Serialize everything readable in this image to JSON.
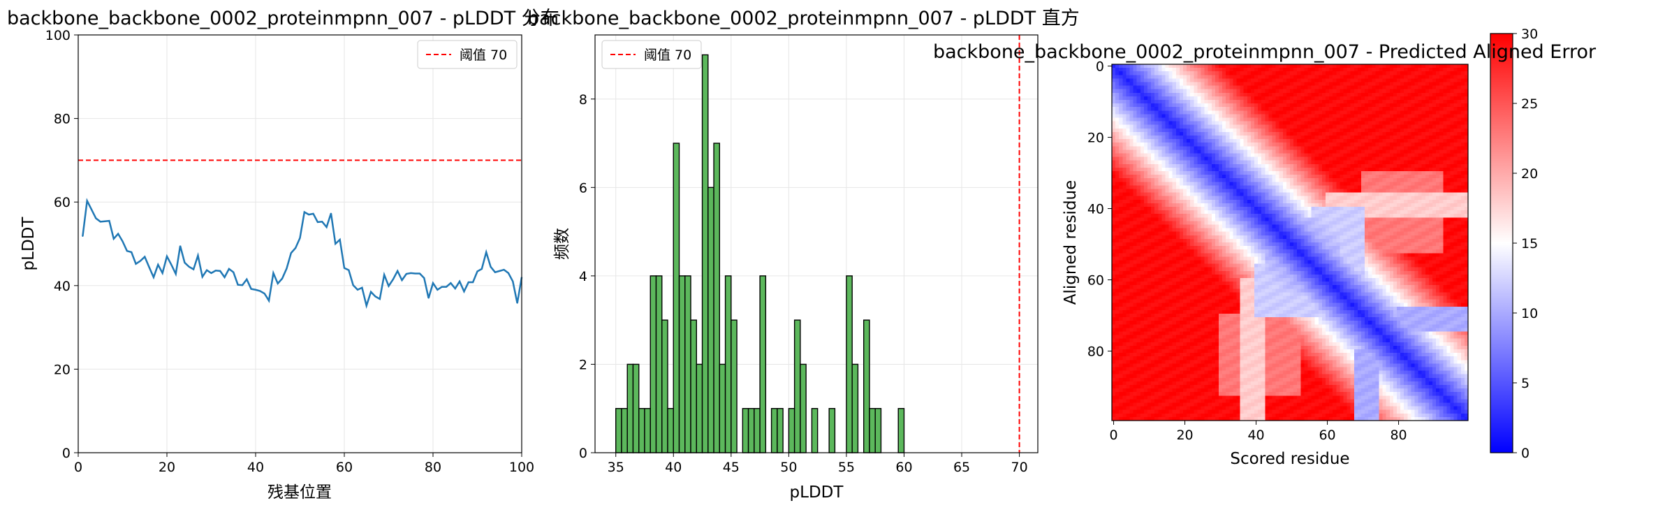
{
  "chart_data": [
    {
      "type": "line",
      "title": "backbone_backbone_0002_proteinmpnn_007 - pLDDT 分布",
      "xlabel": "残基位置",
      "ylabel": "pLDDT",
      "xlim": [
        0,
        100
      ],
      "ylim": [
        0,
        100
      ],
      "xticks": [
        0,
        20,
        40,
        60,
        80,
        100
      ],
      "yticks": [
        0,
        20,
        40,
        60,
        80,
        100
      ],
      "grid": true,
      "legend_position": "top-right",
      "colors": {
        "line": "#1f77b4",
        "threshold": "#ff0000"
      },
      "threshold": {
        "value": 70,
        "label": "阈值 70"
      },
      "series": [
        {
          "x": [
            1,
            2,
            3,
            4,
            5,
            6,
            7,
            8,
            9,
            10,
            11,
            12,
            13,
            14,
            15,
            16,
            17,
            18,
            19,
            20,
            21,
            22,
            23,
            24,
            25,
            26,
            27,
            28,
            29,
            30,
            31,
            32,
            33,
            34,
            35,
            36,
            37,
            38,
            39,
            40,
            41,
            42,
            43,
            44,
            45,
            46,
            47,
            48,
            49,
            50,
            51,
            52,
            53,
            54,
            55,
            56,
            57,
            58,
            59,
            60,
            61,
            62,
            63,
            64,
            65,
            66,
            67,
            68,
            69,
            70,
            71,
            72,
            73,
            74,
            75,
            76,
            77,
            78,
            79,
            80,
            81,
            82,
            83,
            84,
            85,
            86,
            87,
            88,
            89,
            90,
            91,
            92,
            93,
            94,
            95,
            96,
            97,
            98,
            99,
            100
          ],
          "values": [
            51.8,
            60.3,
            58.2,
            56.1,
            55.3,
            55.4,
            55.5,
            51.2,
            52.4,
            50.6,
            48.3,
            48.0,
            45.2,
            45.9,
            46.9,
            44.4,
            42.0,
            45.0,
            43.0,
            47.0,
            45.0,
            42.8,
            49.5,
            45.5,
            44.5,
            43.9,
            47.2,
            42.1,
            43.7,
            43.0,
            43.6,
            43.5,
            42.0,
            44.0,
            43.2,
            40.2,
            40.1,
            41.5,
            39.2,
            39.0,
            38.7,
            38.1,
            36.4,
            43.0,
            40.5,
            41.7,
            44.1,
            47.8,
            49.0,
            51.4,
            57.6,
            57.0,
            57.2,
            55.2,
            55.3,
            54.0,
            57.3,
            50.0,
            51.0,
            44.2,
            43.7,
            40.1,
            39.0,
            39.5,
            35.2,
            38.5,
            37.4,
            36.8,
            42.6,
            39.9,
            41.5,
            43.5,
            41.3,
            42.8,
            43.0,
            42.9,
            42.9,
            41.8,
            37.0,
            40.6,
            39.0,
            39.7,
            39.7,
            40.6,
            39.3,
            41.0,
            38.6,
            40.8,
            40.8,
            43.4,
            44.0,
            48.0,
            44.5,
            43.2,
            43.5,
            43.8,
            43.0,
            41.0,
            35.8,
            42.0
          ]
        }
      ]
    },
    {
      "type": "bar",
      "title": "backbone_backbone_0002_proteinmpnn_007 - pLDDT 直方",
      "xlabel": "pLDDT",
      "ylabel": "频数",
      "xlim": [
        33.2,
        71.6
      ],
      "ylim": [
        0,
        9.45
      ],
      "xticks": [
        35,
        40,
        45,
        50,
        55,
        60,
        65,
        70
      ],
      "yticks": [
        0,
        2,
        4,
        6,
        8
      ],
      "grid": true,
      "legend_position": "top-left",
      "colors": {
        "bar": "#5cb85c",
        "edge": "#000000",
        "threshold": "#ff0000"
      },
      "threshold": {
        "value": 70,
        "label": "阈值 70"
      },
      "bin_width": 0.5,
      "bins": [
        {
          "x": 35.0,
          "y": 1
        },
        {
          "x": 35.5,
          "y": 1
        },
        {
          "x": 36.0,
          "y": 2
        },
        {
          "x": 36.5,
          "y": 2
        },
        {
          "x": 37.0,
          "y": 1
        },
        {
          "x": 37.5,
          "y": 1
        },
        {
          "x": 38.0,
          "y": 4
        },
        {
          "x": 38.5,
          "y": 4
        },
        {
          "x": 39.0,
          "y": 3
        },
        {
          "x": 39.5,
          "y": 1
        },
        {
          "x": 40.0,
          "y": 7
        },
        {
          "x": 40.5,
          "y": 4
        },
        {
          "x": 41.0,
          "y": 4
        },
        {
          "x": 41.5,
          "y": 3
        },
        {
          "x": 42.0,
          "y": 2
        },
        {
          "x": 42.5,
          "y": 9
        },
        {
          "x": 43.0,
          "y": 6
        },
        {
          "x": 43.5,
          "y": 7
        },
        {
          "x": 44.0,
          "y": 2
        },
        {
          "x": 44.5,
          "y": 4
        },
        {
          "x": 45.0,
          "y": 3
        },
        {
          "x": 46.0,
          "y": 1
        },
        {
          "x": 46.5,
          "y": 1
        },
        {
          "x": 47.0,
          "y": 1
        },
        {
          "x": 47.5,
          "y": 4
        },
        {
          "x": 48.5,
          "y": 1
        },
        {
          "x": 49.0,
          "y": 1
        },
        {
          "x": 50.0,
          "y": 1
        },
        {
          "x": 50.5,
          "y": 3
        },
        {
          "x": 51.0,
          "y": 2
        },
        {
          "x": 52.0,
          "y": 1
        },
        {
          "x": 53.5,
          "y": 1
        },
        {
          "x": 55.0,
          "y": 4
        },
        {
          "x": 55.5,
          "y": 2
        },
        {
          "x": 56.5,
          "y": 3
        },
        {
          "x": 57.0,
          "y": 1
        },
        {
          "x": 57.5,
          "y": 1
        },
        {
          "x": 59.5,
          "y": 1
        }
      ]
    },
    {
      "type": "heatmap",
      "title": "backbone_backbone_0002_proteinmpnn_007 - Predicted Aligned Error",
      "xlabel": "Scored residue",
      "ylabel": "Aligned residue",
      "size": 100,
      "xticks": [
        0,
        20,
        40,
        60,
        80
      ],
      "yticks": [
        0,
        20,
        40,
        60,
        80
      ],
      "colormap": "bwr",
      "colorbar": {
        "min": 0,
        "max": 30,
        "ticks": [
          0,
          5,
          10,
          15,
          20,
          25,
          30
        ]
      },
      "features": "low error along diagonal; lower-error block around residues 43-63 (bulge near residue 50); light stripes near 30-40 and 70-95"
    }
  ]
}
